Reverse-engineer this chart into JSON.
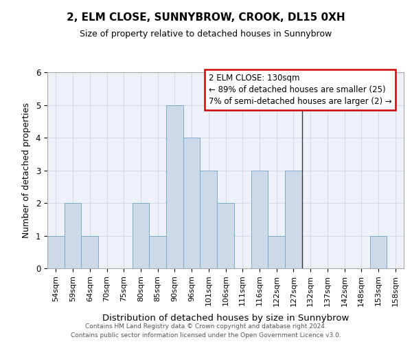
{
  "title": "2, ELM CLOSE, SUNNYBROW, CROOK, DL15 0XH",
  "subtitle": "Size of property relative to detached houses in Sunnybrow",
  "xlabel": "Distribution of detached houses by size in Sunnybrow",
  "ylabel": "Number of detached properties",
  "categories": [
    "54sqm",
    "59sqm",
    "64sqm",
    "70sqm",
    "75sqm",
    "80sqm",
    "85sqm",
    "90sqm",
    "96sqm",
    "101sqm",
    "106sqm",
    "111sqm",
    "116sqm",
    "122sqm",
    "127sqm",
    "132sqm",
    "137sqm",
    "142sqm",
    "148sqm",
    "153sqm",
    "158sqm"
  ],
  "values": [
    1,
    2,
    1,
    0,
    0,
    2,
    1,
    5,
    4,
    3,
    2,
    0,
    3,
    1,
    3,
    0,
    0,
    0,
    0,
    1,
    0
  ],
  "bar_color": "#ccd9e8",
  "bar_edge_color": "#7aaac8",
  "vline_x_index": 15,
  "vline_color": "#333333",
  "ylim": [
    0,
    6
  ],
  "yticks": [
    0,
    1,
    2,
    3,
    4,
    5,
    6
  ],
  "annotation_text": "2 ELM CLOSE: 130sqm\n← 89% of detached houses are smaller (25)\n7% of semi-detached houses are larger (2) →",
  "annotation_box_color": "#ffffff",
  "annotation_box_edge_color": "#cc0000",
  "footer_line1": "Contains HM Land Registry data © Crown copyright and database right 2024.",
  "footer_line2": "Contains public sector information licensed under the Open Government Licence v3.0.",
  "grid_color": "#d0dce8",
  "background_color": "#eef2f8",
  "title_fontsize": 11,
  "subtitle_fontsize": 9,
  "ylabel_fontsize": 9,
  "xlabel_fontsize": 9.5,
  "tick_fontsize": 8,
  "annotation_fontsize": 8.5,
  "footer_fontsize": 6.5
}
